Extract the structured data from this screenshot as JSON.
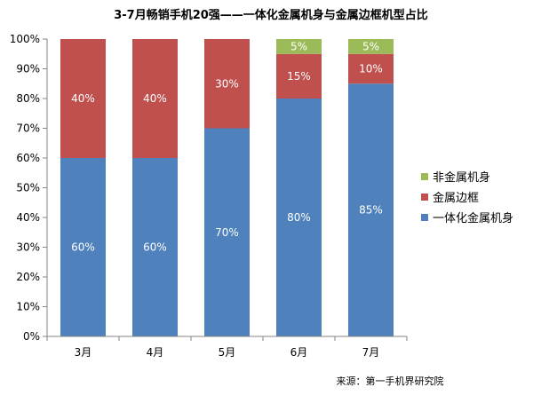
{
  "chart_data": {
    "type": "bar",
    "stacked": true,
    "title": "3-7月畅销手机20强——一体化金属机身与金属边框机型占比",
    "categories": [
      "3月",
      "4月",
      "5月",
      "6月",
      "7月"
    ],
    "series": [
      {
        "name": "一体化金属机身",
        "values": [
          60,
          60,
          70,
          80,
          85
        ],
        "labels": [
          "60%",
          "60%",
          "70%",
          "80%",
          "85%"
        ],
        "color": "#4f81bd"
      },
      {
        "name": "金属边框",
        "values": [
          40,
          40,
          30,
          15,
          10
        ],
        "labels": [
          "40%",
          "40%",
          "30%",
          "15%",
          "10%"
        ],
        "color": "#c0504d"
      },
      {
        "name": "非金属机身",
        "values": [
          0,
          0,
          0,
          5,
          5
        ],
        "labels": [
          "",
          "",
          "",
          "5%",
          "5%"
        ],
        "color": "#9bbb59"
      }
    ],
    "y_ticks": [
      "0%",
      "10%",
      "20%",
      "30%",
      "40%",
      "50%",
      "60%",
      "70%",
      "80%",
      "90%",
      "100%"
    ],
    "ylim": [
      0,
      100
    ],
    "grid": false,
    "legend": {
      "position": "right",
      "order": [
        "非金属机身",
        "金属边框",
        "一体化金属机身"
      ]
    }
  },
  "source": "来源：第一手机界研究院"
}
